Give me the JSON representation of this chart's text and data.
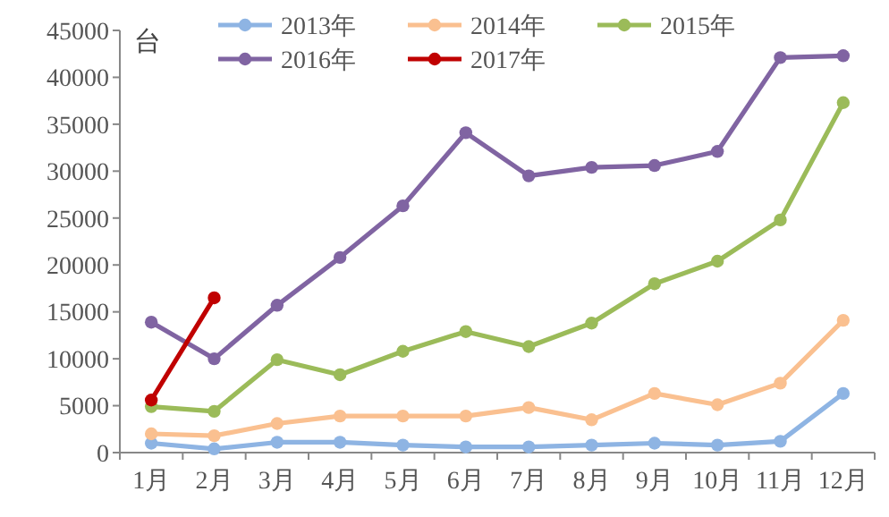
{
  "chart_data": {
    "type": "line",
    "ylabel": "台",
    "categories": [
      "1月",
      "2月",
      "3月",
      "4月",
      "5月",
      "6月",
      "7月",
      "8月",
      "9月",
      "10月",
      "11月",
      "12月"
    ],
    "series": [
      {
        "name": "2013年",
        "color": "#8eb4e3",
        "values": [
          1000,
          400,
          1100,
          1100,
          800,
          600,
          600,
          800,
          1000,
          800,
          1200,
          6300
        ]
      },
      {
        "name": "2014年",
        "color": "#fac090",
        "values": [
          2000,
          1800,
          3100,
          3900,
          3900,
          3900,
          4800,
          3500,
          6300,
          5100,
          7400,
          14100
        ]
      },
      {
        "name": "2015年",
        "color": "#9bbb59",
        "values": [
          4900,
          4400,
          9900,
          8300,
          10800,
          12900,
          11300,
          13800,
          18000,
          20400,
          24800,
          37300
        ]
      },
      {
        "name": "2016年",
        "color": "#8064a2",
        "values": [
          13900,
          10000,
          15700,
          20800,
          26300,
          34100,
          29500,
          30400,
          30600,
          32100,
          42100,
          42300
        ]
      },
      {
        "name": "2017年",
        "color": "#c00000",
        "values": [
          5600,
          16500,
          null,
          null,
          null,
          null,
          null,
          null,
          null,
          null,
          null,
          null
        ]
      }
    ],
    "ylim": [
      0,
      45000
    ],
    "yticks": [
      0,
      5000,
      10000,
      15000,
      20000,
      25000,
      30000,
      35000,
      40000,
      45000
    ],
    "grid": false,
    "legend": "top",
    "marker": "circle",
    "line_style": "solid"
  }
}
